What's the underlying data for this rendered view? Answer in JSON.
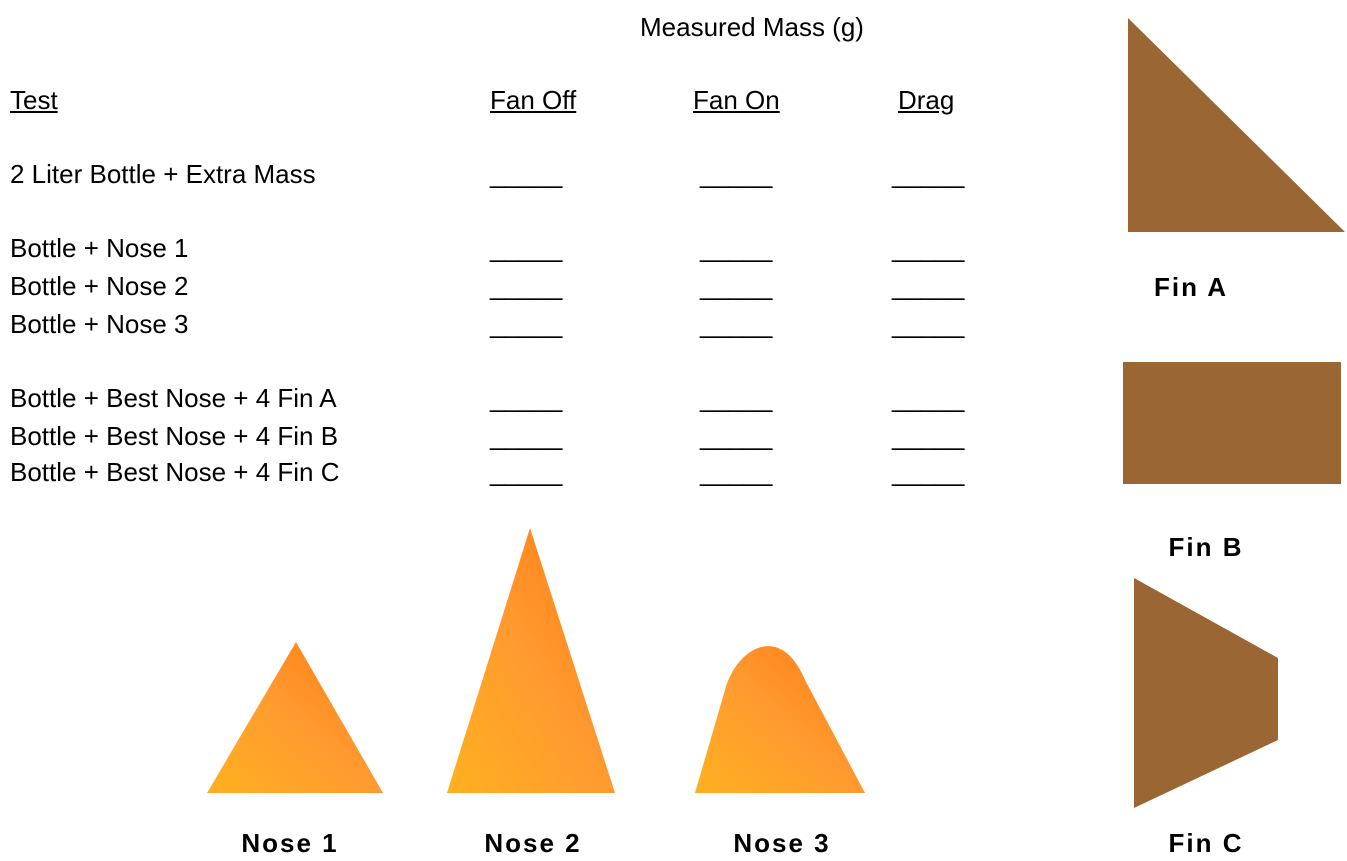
{
  "title": "Measured Mass (g)",
  "table": {
    "header": [
      "Test",
      "Fan Off",
      "Fan On",
      "Drag"
    ],
    "rows": [
      [
        "2 Liter Bottle + Extra Mass",
        "_____",
        "_____",
        "_____"
      ],
      [
        "Bottle + Nose 1",
        "_____",
        "_____",
        "_____"
      ],
      [
        "Bottle + Nose 2",
        "_____",
        "_____",
        "_____"
      ],
      [
        "Bottle + Nose 3",
        "_____",
        "_____",
        "_____"
      ],
      [
        "Bottle + Best Nose + 4 Fin A",
        "_____",
        "_____",
        "_____"
      ],
      [
        "Bottle + Best Nose + 4 Fin B",
        "_____",
        "_____",
        "_____"
      ],
      [
        "Bottle + Best Nose + 4 Fin C",
        "_____",
        "_____",
        "_____"
      ]
    ]
  },
  "fins": [
    "Fin A",
    "Fin B",
    "Fin C"
  ],
  "noses": [
    "Nose 1",
    "Nose 2",
    "Nose 3"
  ]
}
